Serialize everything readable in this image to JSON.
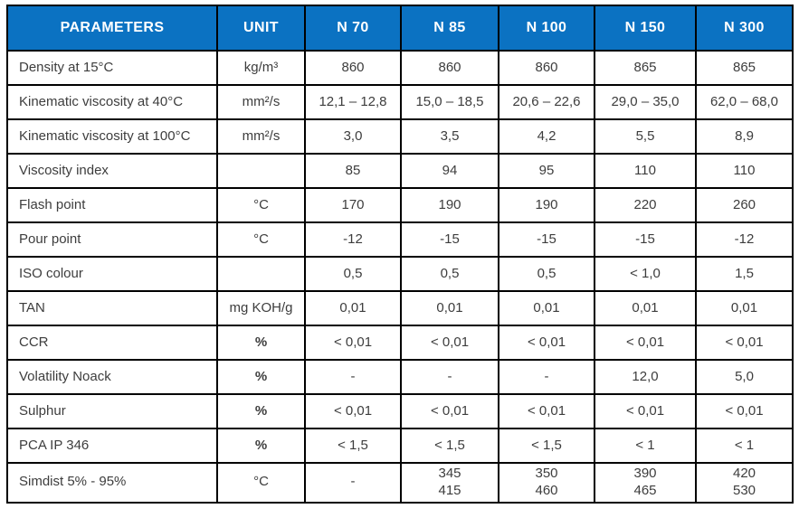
{
  "table": {
    "columns": [
      "PARAMETERS",
      "UNIT",
      "N 70",
      "N 85",
      "N 100",
      "N 150",
      "N 300"
    ],
    "rows": [
      {
        "parameter": "Density at 15°C",
        "unit": "kg/m³",
        "unit_bold": false,
        "values": [
          "860",
          "860",
          "860",
          "865",
          "865"
        ]
      },
      {
        "parameter": "Kinematic viscosity at 40°C",
        "unit": "mm²/s",
        "unit_bold": false,
        "values": [
          "12,1 – 12,8",
          "15,0 – 18,5",
          "20,6 – 22,6",
          "29,0 – 35,0",
          "62,0 – 68,0"
        ]
      },
      {
        "parameter": "Kinematic viscosity at 100°C",
        "unit": "mm²/s",
        "unit_bold": false,
        "values": [
          "3,0",
          "3,5",
          "4,2",
          "5,5",
          "8,9"
        ]
      },
      {
        "parameter": "Viscosity index",
        "unit": "",
        "unit_bold": false,
        "values": [
          "85",
          "94",
          "95",
          "110",
          "110"
        ]
      },
      {
        "parameter": "Flash point",
        "unit": "°C",
        "unit_bold": false,
        "values": [
          "170",
          "190",
          "190",
          "220",
          "260"
        ]
      },
      {
        "parameter": "Pour point",
        "unit": "°C",
        "unit_bold": false,
        "values": [
          "-12",
          "-15",
          "-15",
          "-15",
          "-12"
        ]
      },
      {
        "parameter": "ISO colour",
        "unit": "",
        "unit_bold": false,
        "values": [
          "0,5",
          "0,5",
          "0,5",
          "< 1,0",
          "1,5"
        ]
      },
      {
        "parameter": "TAN",
        "unit": "mg KOH/g",
        "unit_bold": false,
        "values": [
          "0,01",
          "0,01",
          "0,01",
          "0,01",
          "0,01"
        ]
      },
      {
        "parameter": "CCR",
        "unit": "%",
        "unit_bold": true,
        "values": [
          "< 0,01",
          "< 0,01",
          "< 0,01",
          "< 0,01",
          "< 0,01"
        ]
      },
      {
        "parameter": "Volatility Noack",
        "unit": "%",
        "unit_bold": true,
        "values": [
          "-",
          "-",
          "-",
          "12,0",
          "5,0"
        ]
      },
      {
        "parameter": "Sulphur",
        "unit": "%",
        "unit_bold": true,
        "values": [
          "< 0,01",
          "< 0,01",
          "< 0,01",
          "< 0,01",
          "< 0,01"
        ]
      },
      {
        "parameter": "PCA IP 346",
        "unit": "%",
        "unit_bold": true,
        "values": [
          "< 1,5",
          "< 1,5",
          "< 1,5",
          "< 1",
          "< 1"
        ]
      },
      {
        "parameter": "Simdist 5% - 95%",
        "unit": "°C",
        "unit_bold": false,
        "values": [
          "-",
          "345\n415",
          "350\n460",
          "390\n465",
          "420\n530"
        ]
      }
    ]
  },
  "colors": {
    "header_bg": "#0b72c2",
    "header_text": "#ffffff",
    "body_text": "#3d3d3d",
    "border": "#000000"
  }
}
